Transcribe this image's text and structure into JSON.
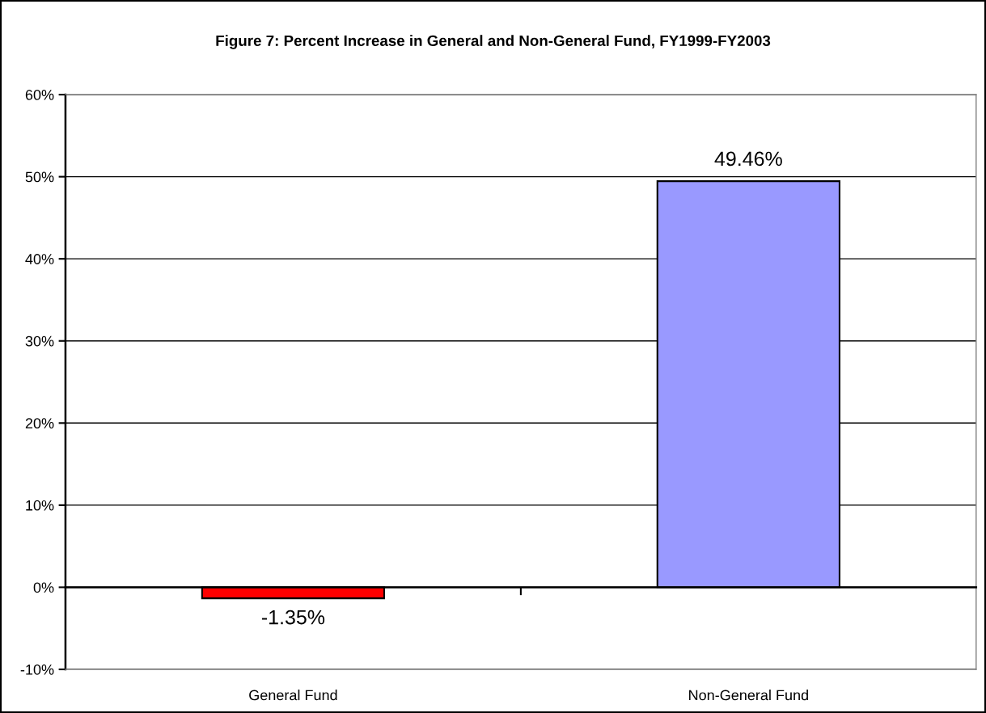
{
  "chart_data": {
    "type": "bar",
    "title": "Figure 7: Percent Increase in General and Non-General Fund, FY1999-FY2003",
    "categories": [
      "General Fund",
      "Non-General Fund"
    ],
    "values": [
      -1.35,
      49.46
    ],
    "colors": [
      "#ff0000",
      "#9999ff"
    ],
    "value_labels": [
      "-1.35%",
      "49.46%"
    ],
    "ylim": [
      -10,
      60
    ],
    "yticks": [
      {
        "value": -10,
        "label": "-10%"
      },
      {
        "value": 0,
        "label": "0%"
      },
      {
        "value": 10,
        "label": "10%"
      },
      {
        "value": 20,
        "label": "20%"
      },
      {
        "value": 30,
        "label": "30%"
      },
      {
        "value": 40,
        "label": "40%"
      },
      {
        "value": 50,
        "label": "50%"
      },
      {
        "value": 60,
        "label": "60%"
      }
    ],
    "grid": "y"
  }
}
